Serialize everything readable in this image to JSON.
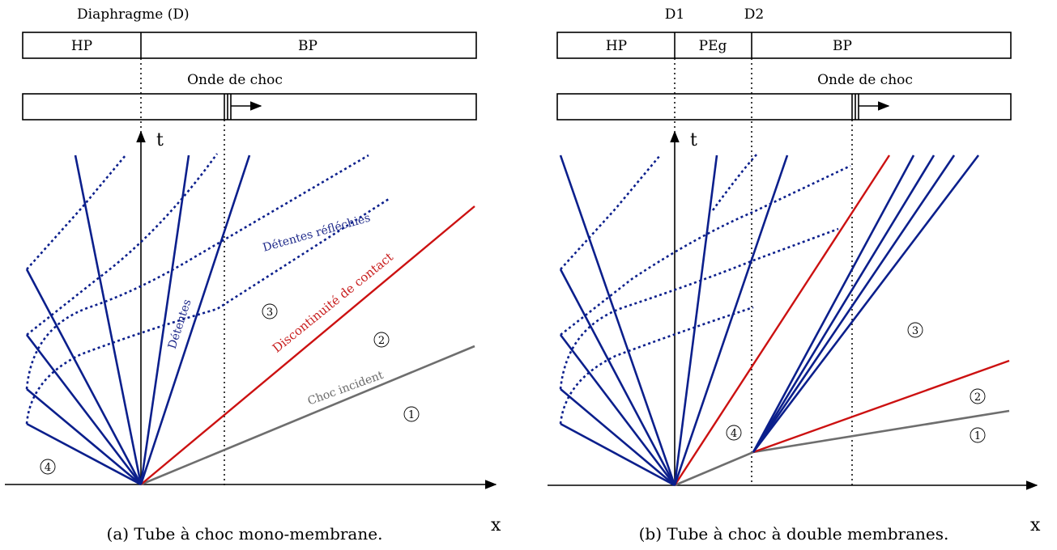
{
  "panel_a": {
    "diaphragm_label": "Diaphragme (D)",
    "tube_hp": "HP",
    "tube_bp": "BP",
    "shock_wave_label": "Onde de choc",
    "axis_t": "t",
    "axis_x": "x",
    "label_reflected": "Détentes réfléchies",
    "label_expansions": "Détentes",
    "label_contact": "Discontinuité de contact",
    "label_incident": "Choc incident",
    "zone_1": "1",
    "zone_2": "2",
    "zone_3": "3",
    "zone_4": "4",
    "caption": "(a) Tube à choc mono-membrane."
  },
  "panel_b": {
    "diaphragm_1": "D1",
    "diaphragm_2": "D2",
    "tube_hp": "HP",
    "tube_peg": "PEg",
    "tube_bp": "BP",
    "shock_wave_label": "Onde de choc",
    "axis_t": "t",
    "axis_x": "x",
    "zone_1": "1",
    "zone_2": "2",
    "zone_3": "3",
    "zone_4": "4",
    "caption": "(b) Tube à choc à double membranes."
  },
  "colors": {
    "expansion": "#0b1f8c",
    "contact": "#cc1111",
    "shock": "#6e6e6e"
  }
}
